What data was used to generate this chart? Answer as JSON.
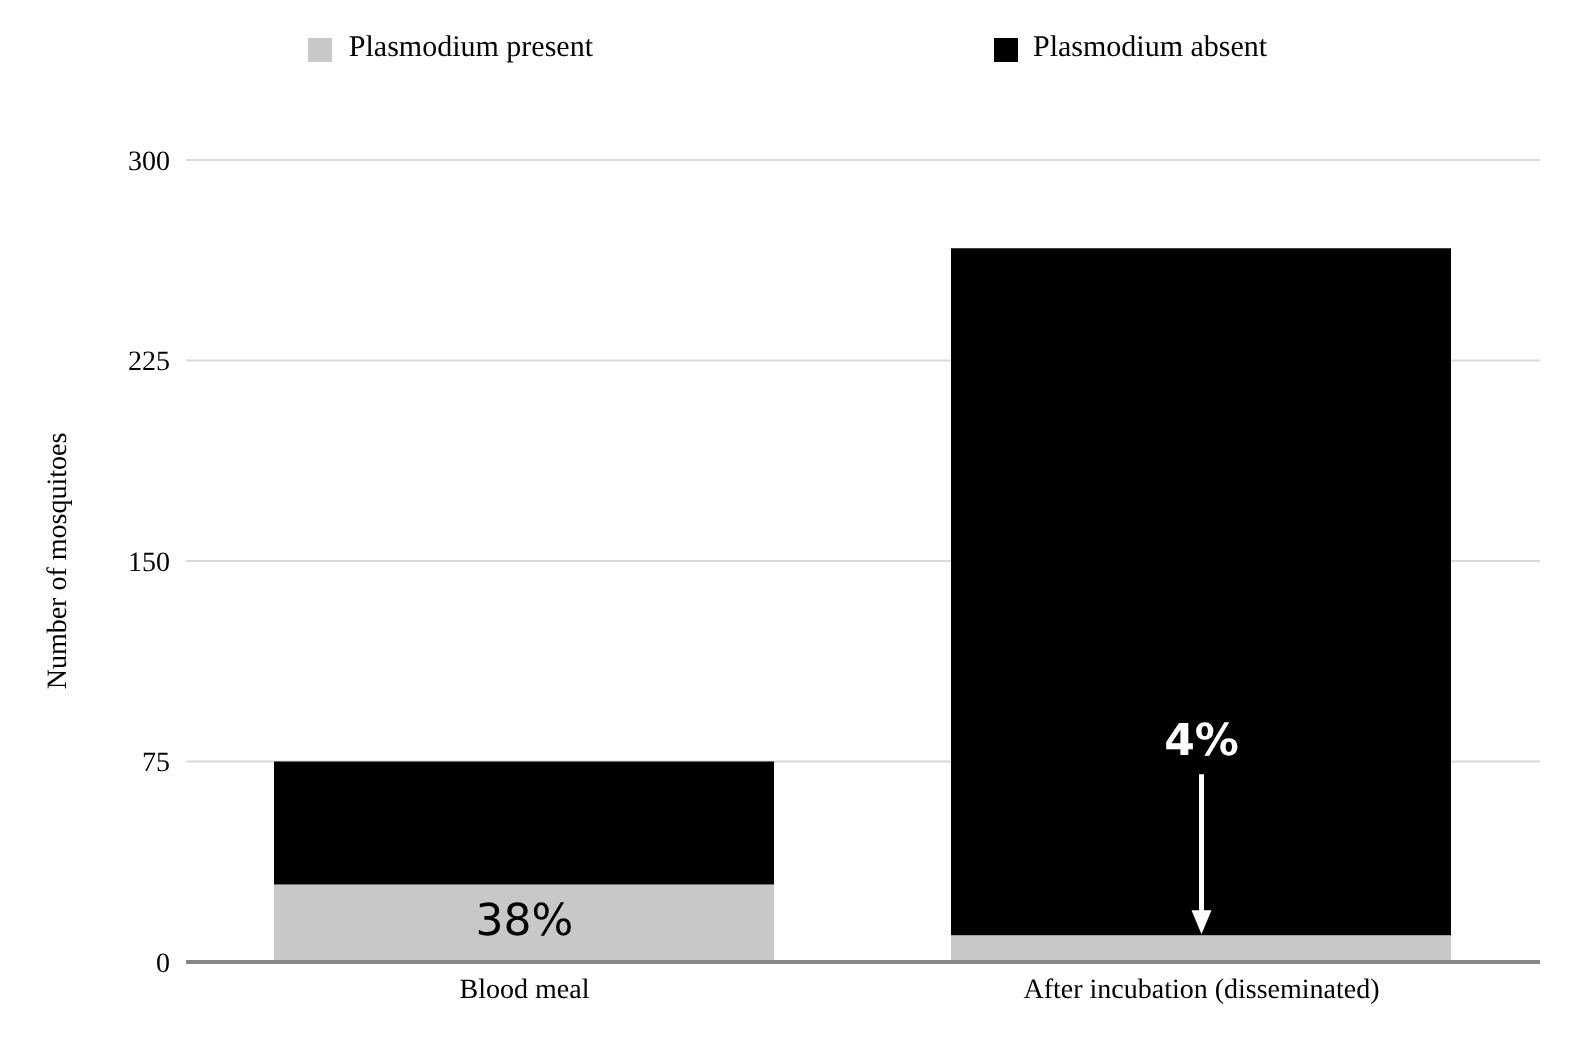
{
  "chart_data": {
    "type": "bar",
    "stacked": true,
    "ylabel": "Number of mosquitoes",
    "categories": [
      "Blood meal",
      "After incubation (disseminated)"
    ],
    "series": [
      {
        "name": "Plasmodium present",
        "color": "#c8c8c8",
        "values": [
          29,
          10
        ]
      },
      {
        "name": "Plasmodium absent",
        "color": "#000000",
        "values": [
          46,
          257
        ]
      }
    ],
    "ylim": [
      0,
      300
    ],
    "yticks": [
      0,
      75,
      150,
      225,
      300
    ],
    "grid": "y",
    "legend": "top",
    "annotations": [
      {
        "text": "38%",
        "x": "Blood meal",
        "y": 29
      },
      "4%"
    ]
  }
}
